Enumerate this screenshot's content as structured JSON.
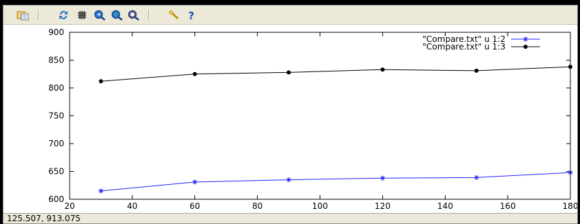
{
  "toolbar": {
    "buttons": [
      {
        "name": "copy-to-clipboard-icon"
      },
      {
        "name": "replot-icon"
      },
      {
        "name": "grid-icon"
      },
      {
        "name": "previous-zoom-icon"
      },
      {
        "name": "next-zoom-icon"
      },
      {
        "name": "autoscale-icon"
      },
      {
        "name": "options-icon"
      },
      {
        "name": "help-icon"
      }
    ]
  },
  "status": {
    "coords": "125.507,  913.075"
  },
  "colors": {
    "series1": "#2020ff",
    "series2": "#000000",
    "toolbar_bg": "#ece9d8"
  },
  "chart_data": {
    "type": "line",
    "title": "",
    "xlabel": "",
    "ylabel": "",
    "xlim": [
      20,
      180
    ],
    "ylim": [
      600,
      900
    ],
    "xticks": [
      "20",
      "40",
      "60",
      "80",
      "100",
      "120",
      "140",
      "160",
      "180"
    ],
    "yticks": [
      "600",
      "650",
      "700",
      "750",
      "800",
      "850",
      "900"
    ],
    "grid": false,
    "legend_position": "top-right",
    "series": [
      {
        "name": "\"Compare.txt\" u 1:2",
        "marker": "star",
        "color": "#2020ff",
        "x": [
          30,
          60,
          90,
          120,
          150,
          180
        ],
        "y": [
          615,
          631,
          635,
          638,
          639,
          648
        ]
      },
      {
        "name": "\"Compare.txt\" u 1:3",
        "marker": "circle",
        "color": "#000000",
        "x": [
          30,
          60,
          90,
          120,
          150,
          180
        ],
        "y": [
          812,
          825,
          828,
          833,
          831,
          838
        ]
      }
    ]
  }
}
